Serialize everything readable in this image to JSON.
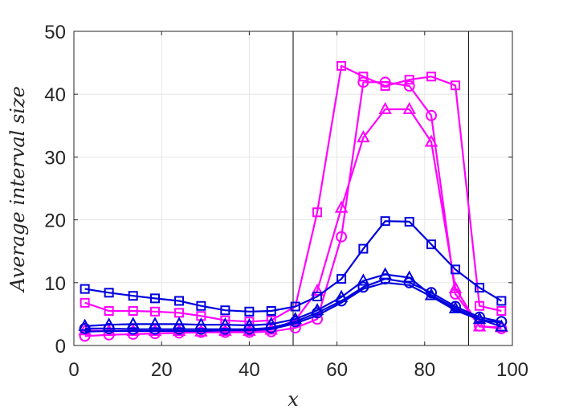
{
  "chart_data": {
    "type": "line",
    "title": "",
    "xlabel": "x",
    "ylabel": "Average interval size",
    "xlim": [
      0,
      100
    ],
    "ylim": [
      0,
      50
    ],
    "xticks": [
      0,
      20,
      40,
      60,
      80,
      100
    ],
    "yticks": [
      0,
      10,
      20,
      30,
      40,
      50
    ],
    "grid": true,
    "vertical_lines": [
      50,
      90
    ],
    "x": [
      2.5,
      8,
      13.5,
      18.5,
      24,
      29,
      34.5,
      40,
      45,
      50.5,
      55.5,
      61,
      66,
      71,
      76.5,
      81.5,
      87,
      92.5,
      97.5
    ],
    "series": [
      {
        "color": "#ff00ff",
        "marker": "square",
        "values": [
          6.8,
          5.5,
          5.5,
          5.4,
          5.2,
          4.7,
          4.0,
          3.8,
          4.0,
          6.2,
          21.2,
          44.5,
          42.8,
          41.3,
          42.3,
          42.8,
          41.4,
          6.3,
          5.5
        ]
      },
      {
        "color": "#ff00ff",
        "marker": "triangle",
        "values": [
          2.4,
          2.3,
          2.3,
          2.3,
          2.3,
          2.2,
          2.3,
          2.3,
          2.5,
          4.0,
          8.7,
          21.9,
          33.1,
          37.6,
          37.6,
          32.4,
          9.1,
          3.0,
          2.9
        ]
      },
      {
        "color": "#ff00ff",
        "marker": "circle",
        "values": [
          1.5,
          1.7,
          1.8,
          1.9,
          2.0,
          2.1,
          2.1,
          2.1,
          2.2,
          2.8,
          4.2,
          17.3,
          41.9,
          41.9,
          41.3,
          36.6,
          8.2,
          3.1,
          2.7
        ]
      },
      {
        "color": "#0000dd",
        "marker": "square",
        "values": [
          9.0,
          8.4,
          7.9,
          7.5,
          7.1,
          6.3,
          5.6,
          5.4,
          5.5,
          6.2,
          7.8,
          10.6,
          15.4,
          19.8,
          19.7,
          16.1,
          12.1,
          9.2,
          7.1
        ]
      },
      {
        "color": "#0000dd",
        "marker": "triangle",
        "values": [
          3.1,
          3.3,
          3.4,
          3.4,
          3.4,
          3.3,
          3.3,
          3.2,
          3.4,
          4.2,
          5.6,
          7.7,
          10.3,
          11.3,
          10.8,
          8.0,
          5.9,
          4.2,
          3.0
        ]
      },
      {
        "color": "#0000dd",
        "marker": "circle",
        "values": [
          2.7,
          2.7,
          2.6,
          2.6,
          2.6,
          2.6,
          2.6,
          2.6,
          2.8,
          3.8,
          5.2,
          7.1,
          9.3,
          10.6,
          10.0,
          8.4,
          6.2,
          4.5,
          3.8
        ]
      },
      {
        "color": "#0000dd",
        "marker": "none",
        "values": [
          2.2,
          2.3,
          2.3,
          2.3,
          2.3,
          2.3,
          2.4,
          2.4,
          2.6,
          3.5,
          4.8,
          6.8,
          9.0,
          10.0,
          9.6,
          7.8,
          5.6,
          4.1,
          3.6
        ]
      }
    ]
  }
}
